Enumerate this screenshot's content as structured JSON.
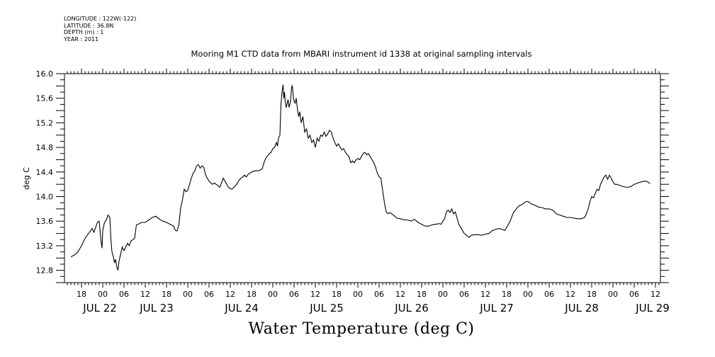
{
  "meta": {
    "longitude": "LONGITUDE : 122W(-122)",
    "latitude": "LATITUDE : 36.8N",
    "depth": "DEPTH (m) : 1",
    "year": "YEAR : 2011"
  },
  "chart_data": {
    "type": "line",
    "title": "Mooring M1 CTD data from MBARI instrument id 1338 at original sampling intervals",
    "bottom_title": "Water Temperature (deg C)",
    "ylabel": "deg C",
    "ylim": [
      12.6,
      16.0
    ],
    "yticks": [
      "12.8",
      "13.2",
      "13.6",
      "14.0",
      "14.4",
      "14.8",
      "15.2",
      "15.6",
      "16.0"
    ],
    "xlim_hours": [
      0,
      166
    ],
    "hour_labels": [
      "18",
      "00",
      "06",
      "12",
      "18",
      "00",
      "06",
      "12",
      "18",
      "00",
      "06",
      "12",
      "18",
      "00",
      "06",
      "12",
      "18",
      "00",
      "06",
      "12",
      "18",
      "00",
      "06",
      "12",
      "18",
      "00",
      "06",
      "12"
    ],
    "date_labels": [
      "JUL 22",
      "JUL 23",
      "JUL 24",
      "JUL 25",
      "JUL 26",
      "JUL 27",
      "JUL 28",
      "JUL 29"
    ],
    "date_label_hours": [
      12,
      28,
      52,
      76,
      100,
      124,
      148,
      168
    ],
    "x_unit": "hours from JUL 22 15:00",
    "series": [
      {
        "points": [
          [
            0,
            13.02
          ],
          [
            1,
            13.05
          ],
          [
            2,
            13.1
          ],
          [
            3,
            13.2
          ],
          [
            4,
            13.32
          ],
          [
            5,
            13.4
          ],
          [
            6,
            13.48
          ],
          [
            6.5,
            13.42
          ],
          [
            7,
            13.5
          ],
          [
            7.5,
            13.58
          ],
          [
            8,
            13.6
          ],
          [
            8.5,
            13.28
          ],
          [
            8.8,
            13.16
          ],
          [
            9,
            13.45
          ],
          [
            9.5,
            13.58
          ],
          [
            10,
            13.62
          ],
          [
            10.5,
            13.7
          ],
          [
            11,
            13.66
          ],
          [
            11.3,
            13.3
          ],
          [
            11.6,
            13.1
          ],
          [
            12,
            13.02
          ],
          [
            12.3,
            12.92
          ],
          [
            12.6,
            12.98
          ],
          [
            13,
            12.85
          ],
          [
            13.3,
            12.8
          ],
          [
            13.6,
            12.95
          ],
          [
            14,
            13.05
          ],
          [
            14.5,
            13.18
          ],
          [
            15,
            13.12
          ],
          [
            15.5,
            13.18
          ],
          [
            16,
            13.24
          ],
          [
            16.5,
            13.2
          ],
          [
            17,
            13.28
          ],
          [
            17.5,
            13.3
          ],
          [
            18,
            13.32
          ],
          [
            18.5,
            13.54
          ],
          [
            19,
            13.55
          ],
          [
            20,
            13.58
          ],
          [
            21,
            13.58
          ],
          [
            22,
            13.62
          ],
          [
            23,
            13.66
          ],
          [
            24,
            13.68
          ],
          [
            25,
            13.63
          ],
          [
            26,
            13.6
          ],
          [
            27,
            13.58
          ],
          [
            28,
            13.55
          ],
          [
            29,
            13.52
          ],
          [
            29.5,
            13.45
          ],
          [
            30,
            13.44
          ],
          [
            30.5,
            13.55
          ],
          [
            31,
            13.82
          ],
          [
            31.5,
            13.95
          ],
          [
            32,
            14.12
          ],
          [
            32.5,
            14.08
          ],
          [
            33,
            14.1
          ],
          [
            33.5,
            14.2
          ],
          [
            34,
            14.3
          ],
          [
            34.5,
            14.38
          ],
          [
            35,
            14.42
          ],
          [
            35.5,
            14.5
          ],
          [
            36,
            14.52
          ],
          [
            36.5,
            14.46
          ],
          [
            37,
            14.5
          ],
          [
            37.5,
            14.48
          ],
          [
            38,
            14.36
          ],
          [
            38.5,
            14.3
          ],
          [
            39,
            14.25
          ],
          [
            39.5,
            14.22
          ],
          [
            40,
            14.2
          ],
          [
            40.5,
            14.22
          ],
          [
            41,
            14.2
          ],
          [
            41.5,
            14.18
          ],
          [
            42,
            14.15
          ],
          [
            42.5,
            14.22
          ],
          [
            43,
            14.3
          ],
          [
            43.5,
            14.25
          ],
          [
            44,
            14.2
          ],
          [
            44.5,
            14.15
          ],
          [
            45,
            14.13
          ],
          [
            45.5,
            14.12
          ],
          [
            46,
            14.15
          ],
          [
            46.5,
            14.18
          ],
          [
            47,
            14.22
          ],
          [
            47.5,
            14.27
          ],
          [
            48,
            14.3
          ],
          [
            48.5,
            14.32
          ],
          [
            49,
            14.35
          ],
          [
            49.5,
            14.32
          ],
          [
            50,
            14.36
          ],
          [
            51,
            14.4
          ],
          [
            52,
            14.42
          ],
          [
            53,
            14.42
          ],
          [
            54,
            14.45
          ],
          [
            54.5,
            14.55
          ],
          [
            55,
            14.62
          ],
          [
            55.5,
            14.66
          ],
          [
            56,
            14.7
          ],
          [
            56.5,
            14.72
          ],
          [
            57,
            14.78
          ],
          [
            57.5,
            14.8
          ],
          [
            58,
            14.88
          ],
          [
            58.3,
            14.82
          ],
          [
            58.6,
            14.95
          ],
          [
            59,
            15.0
          ],
          [
            59.3,
            15.5
          ],
          [
            59.6,
            15.7
          ],
          [
            59.9,
            15.82
          ],
          [
            60.1,
            15.6
          ],
          [
            60.3,
            15.7
          ],
          [
            60.5,
            15.55
          ],
          [
            60.8,
            15.45
          ],
          [
            61,
            15.5
          ],
          [
            61.3,
            15.58
          ],
          [
            61.6,
            15.45
          ],
          [
            62,
            15.55
          ],
          [
            62.3,
            15.78
          ],
          [
            62.5,
            15.8
          ],
          [
            62.8,
            15.62
          ],
          [
            63,
            15.55
          ],
          [
            63.3,
            15.52
          ],
          [
            63.6,
            15.6
          ],
          [
            64,
            15.4
          ],
          [
            64.3,
            15.3
          ],
          [
            64.6,
            15.38
          ],
          [
            65,
            15.2
          ],
          [
            65.5,
            15.3
          ],
          [
            66,
            15.05
          ],
          [
            66.5,
            15.1
          ],
          [
            67,
            14.95
          ],
          [
            67.5,
            15.0
          ],
          [
            68,
            14.88
          ],
          [
            68.5,
            14.92
          ],
          [
            69,
            14.8
          ],
          [
            69.5,
            14.95
          ],
          [
            70,
            14.9
          ],
          [
            70.5,
            15.0
          ],
          [
            71,
            14.98
          ],
          [
            71.5,
            15.05
          ],
          [
            72,
            14.98
          ],
          [
            72.5,
            15.02
          ],
          [
            73,
            15.08
          ],
          [
            73.5,
            15.05
          ],
          [
            74,
            14.95
          ],
          [
            74.5,
            14.88
          ],
          [
            75,
            14.82
          ],
          [
            75.5,
            14.86
          ],
          [
            76,
            14.8
          ],
          [
            76.5,
            14.76
          ],
          [
            77,
            14.78
          ],
          [
            77.5,
            14.72
          ],
          [
            78,
            14.68
          ],
          [
            78.5,
            14.65
          ],
          [
            79,
            14.55
          ],
          [
            79.5,
            14.58
          ],
          [
            80,
            14.55
          ],
          [
            80.5,
            14.6
          ],
          [
            81,
            14.62
          ],
          [
            81.5,
            14.6
          ],
          [
            82,
            14.65
          ],
          [
            82.5,
            14.7
          ],
          [
            83,
            14.72
          ],
          [
            83.5,
            14.68
          ],
          [
            84,
            14.7
          ],
          [
            84.5,
            14.65
          ],
          [
            85,
            14.6
          ],
          [
            85.5,
            14.55
          ],
          [
            86,
            14.48
          ],
          [
            86.5,
            14.38
          ],
          [
            87,
            14.32
          ],
          [
            87.5,
            14.3
          ],
          [
            88,
            14.1
          ],
          [
            88.5,
            13.9
          ],
          [
            89,
            13.75
          ],
          [
            89.5,
            13.72
          ],
          [
            90,
            13.74
          ],
          [
            91,
            13.7
          ],
          [
            92,
            13.65
          ],
          [
            93,
            13.64
          ],
          [
            94,
            13.62
          ],
          [
            95,
            13.62
          ],
          [
            96,
            13.6
          ],
          [
            97,
            13.63
          ],
          [
            98,
            13.58
          ],
          [
            99,
            13.55
          ],
          [
            100,
            13.52
          ],
          [
            101,
            13.52
          ],
          [
            102,
            13.54
          ],
          [
            103,
            13.55
          ],
          [
            104,
            13.56
          ],
          [
            104.5,
            13.55
          ],
          [
            105,
            13.6
          ],
          [
            105.5,
            13.64
          ],
          [
            106,
            13.75
          ],
          [
            106.5,
            13.78
          ],
          [
            107,
            13.74
          ],
          [
            107.5,
            13.8
          ],
          [
            108,
            13.72
          ],
          [
            108.5,
            13.75
          ],
          [
            109,
            13.65
          ],
          [
            109.5,
            13.55
          ],
          [
            110,
            13.5
          ],
          [
            110.5,
            13.45
          ],
          [
            111,
            13.4
          ],
          [
            111.5,
            13.38
          ],
          [
            112,
            13.35
          ],
          [
            112.5,
            13.34
          ],
          [
            113,
            13.37
          ],
          [
            114,
            13.38
          ],
          [
            115,
            13.38
          ],
          [
            116,
            13.37
          ],
          [
            117,
            13.39
          ],
          [
            118,
            13.4
          ],
          [
            119,
            13.45
          ],
          [
            120,
            13.47
          ],
          [
            121,
            13.48
          ],
          [
            122,
            13.46
          ],
          [
            122.5,
            13.45
          ],
          [
            123,
            13.5
          ],
          [
            123.5,
            13.55
          ],
          [
            124,
            13.6
          ],
          [
            124.5,
            13.68
          ],
          [
            125,
            13.75
          ],
          [
            125.5,
            13.78
          ],
          [
            126,
            13.82
          ],
          [
            126.5,
            13.85
          ],
          [
            127,
            13.86
          ],
          [
            127.5,
            13.88
          ],
          [
            128,
            13.9
          ],
          [
            128.5,
            13.92
          ],
          [
            129,
            13.92
          ],
          [
            130,
            13.88
          ],
          [
            131,
            13.86
          ],
          [
            132,
            13.83
          ],
          [
            133,
            13.82
          ],
          [
            134,
            13.8
          ],
          [
            135,
            13.8
          ],
          [
            136,
            13.78
          ],
          [
            137,
            13.72
          ],
          [
            138,
            13.7
          ],
          [
            139,
            13.68
          ],
          [
            140,
            13.66
          ],
          [
            141,
            13.66
          ],
          [
            142,
            13.65
          ],
          [
            143,
            13.64
          ],
          [
            144,
            13.64
          ],
          [
            145,
            13.66
          ],
          [
            145.5,
            13.72
          ],
          [
            146,
            13.8
          ],
          [
            146.5,
            13.92
          ],
          [
            147,
            14.0
          ],
          [
            147.5,
            13.98
          ],
          [
            148,
            14.05
          ],
          [
            148.5,
            14.12
          ],
          [
            149,
            14.1
          ],
          [
            149.5,
            14.2
          ],
          [
            150,
            14.26
          ],
          [
            150.5,
            14.32
          ],
          [
            151,
            14.35
          ],
          [
            151.5,
            14.28
          ],
          [
            152,
            14.35
          ],
          [
            152.5,
            14.3
          ],
          [
            153,
            14.24
          ],
          [
            153.5,
            14.2
          ],
          [
            154,
            14.2
          ],
          [
            155,
            14.18
          ],
          [
            156,
            14.16
          ],
          [
            157,
            14.15
          ],
          [
            158,
            14.16
          ],
          [
            159,
            14.2
          ],
          [
            160,
            14.22
          ],
          [
            161,
            14.24
          ],
          [
            162,
            14.25
          ],
          [
            162.5,
            14.25
          ],
          [
            163,
            14.23
          ],
          [
            163.5,
            14.21
          ]
        ]
      }
    ]
  }
}
